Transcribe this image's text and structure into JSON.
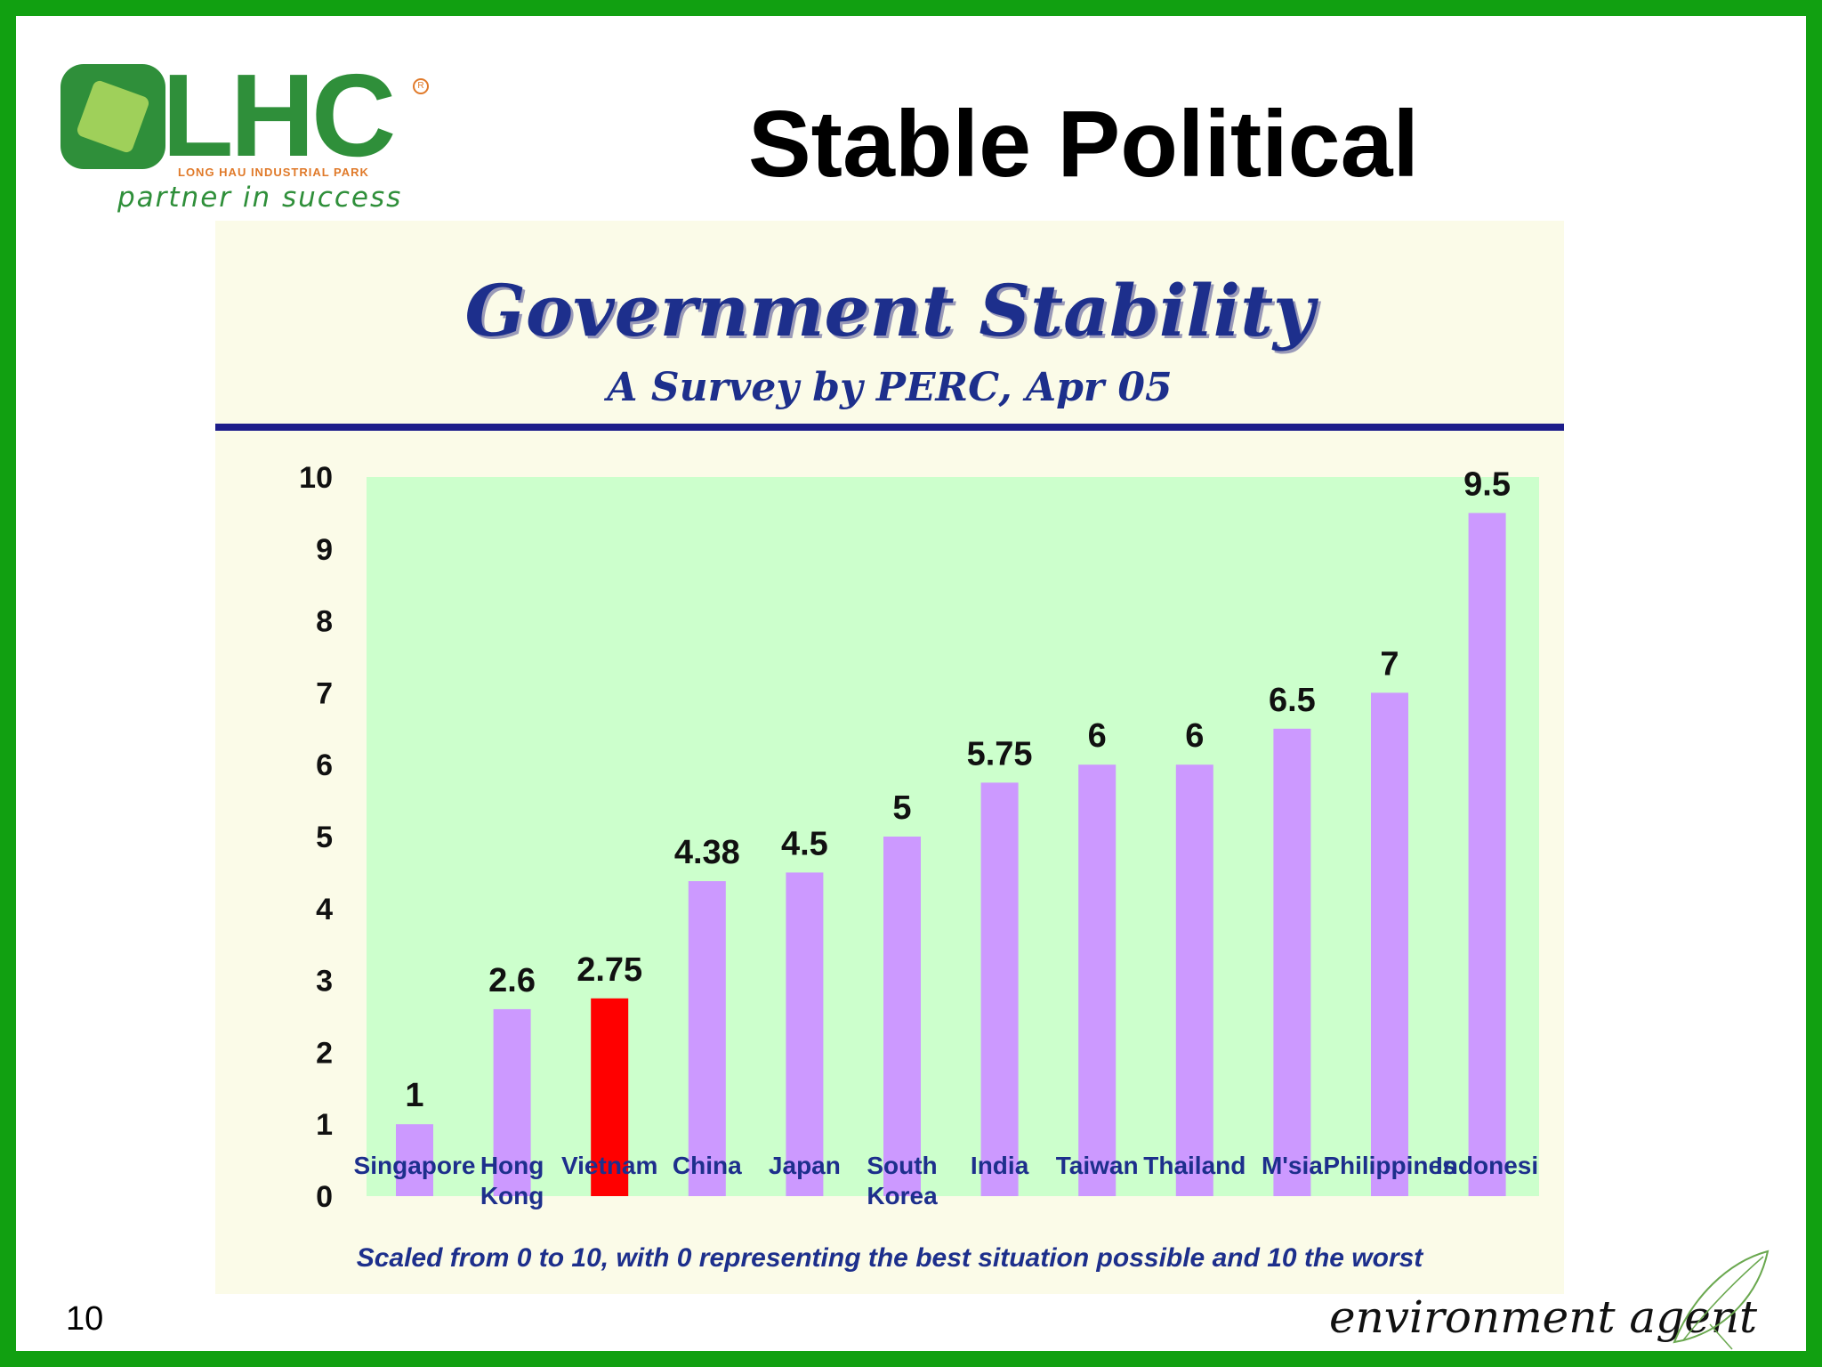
{
  "logo": {
    "letters": "LHC",
    "registered": "R",
    "subtitle": "LONG HAU INDUSTRIAL PARK",
    "tagline": "partner in success"
  },
  "slide_title": "Stable Political",
  "page_number": "10",
  "footer_brand": "environment agent",
  "colors": {
    "frame": "#11a011",
    "bar": "#cc99ff",
    "highlight_bar": "#ff0000",
    "plot_background": "#ccffcc",
    "panel_background": "#fbfbe8",
    "title_text": "#1d2f8c",
    "category_text": "#1d2f8c"
  },
  "chart_data": {
    "type": "bar",
    "title": "Government Stability",
    "subtitle": "A Survey by PERC, Apr 05",
    "categories": [
      [
        "Singapore"
      ],
      [
        "Hong",
        "Kong"
      ],
      [
        "Vietnam"
      ],
      [
        "China"
      ],
      [
        "Japan"
      ],
      [
        "South",
        "Korea"
      ],
      [
        "India"
      ],
      [
        "Taiwan"
      ],
      [
        "Thailand"
      ],
      [
        "M'sia"
      ],
      [
        "Philippines"
      ],
      [
        "Indonesi"
      ]
    ],
    "values": [
      1,
      2.6,
      2.75,
      4.38,
      4.5,
      5,
      5.75,
      6,
      6,
      6.5,
      7,
      9.5
    ],
    "value_labels": [
      "1",
      "2.6",
      "2.75",
      "4.38",
      "4.5",
      "5",
      "5.75",
      "6",
      "6",
      "6.5",
      "7",
      "9.5"
    ],
    "highlight_index": 2,
    "ylim": [
      0,
      10
    ],
    "yticks": [
      "0",
      "1",
      "2",
      "3",
      "4",
      "5",
      "6",
      "7",
      "8",
      "9",
      "10"
    ],
    "grid": false,
    "note": "Scaled from 0 to 10, with 0 representing the best situation possible and 10 the worst"
  }
}
